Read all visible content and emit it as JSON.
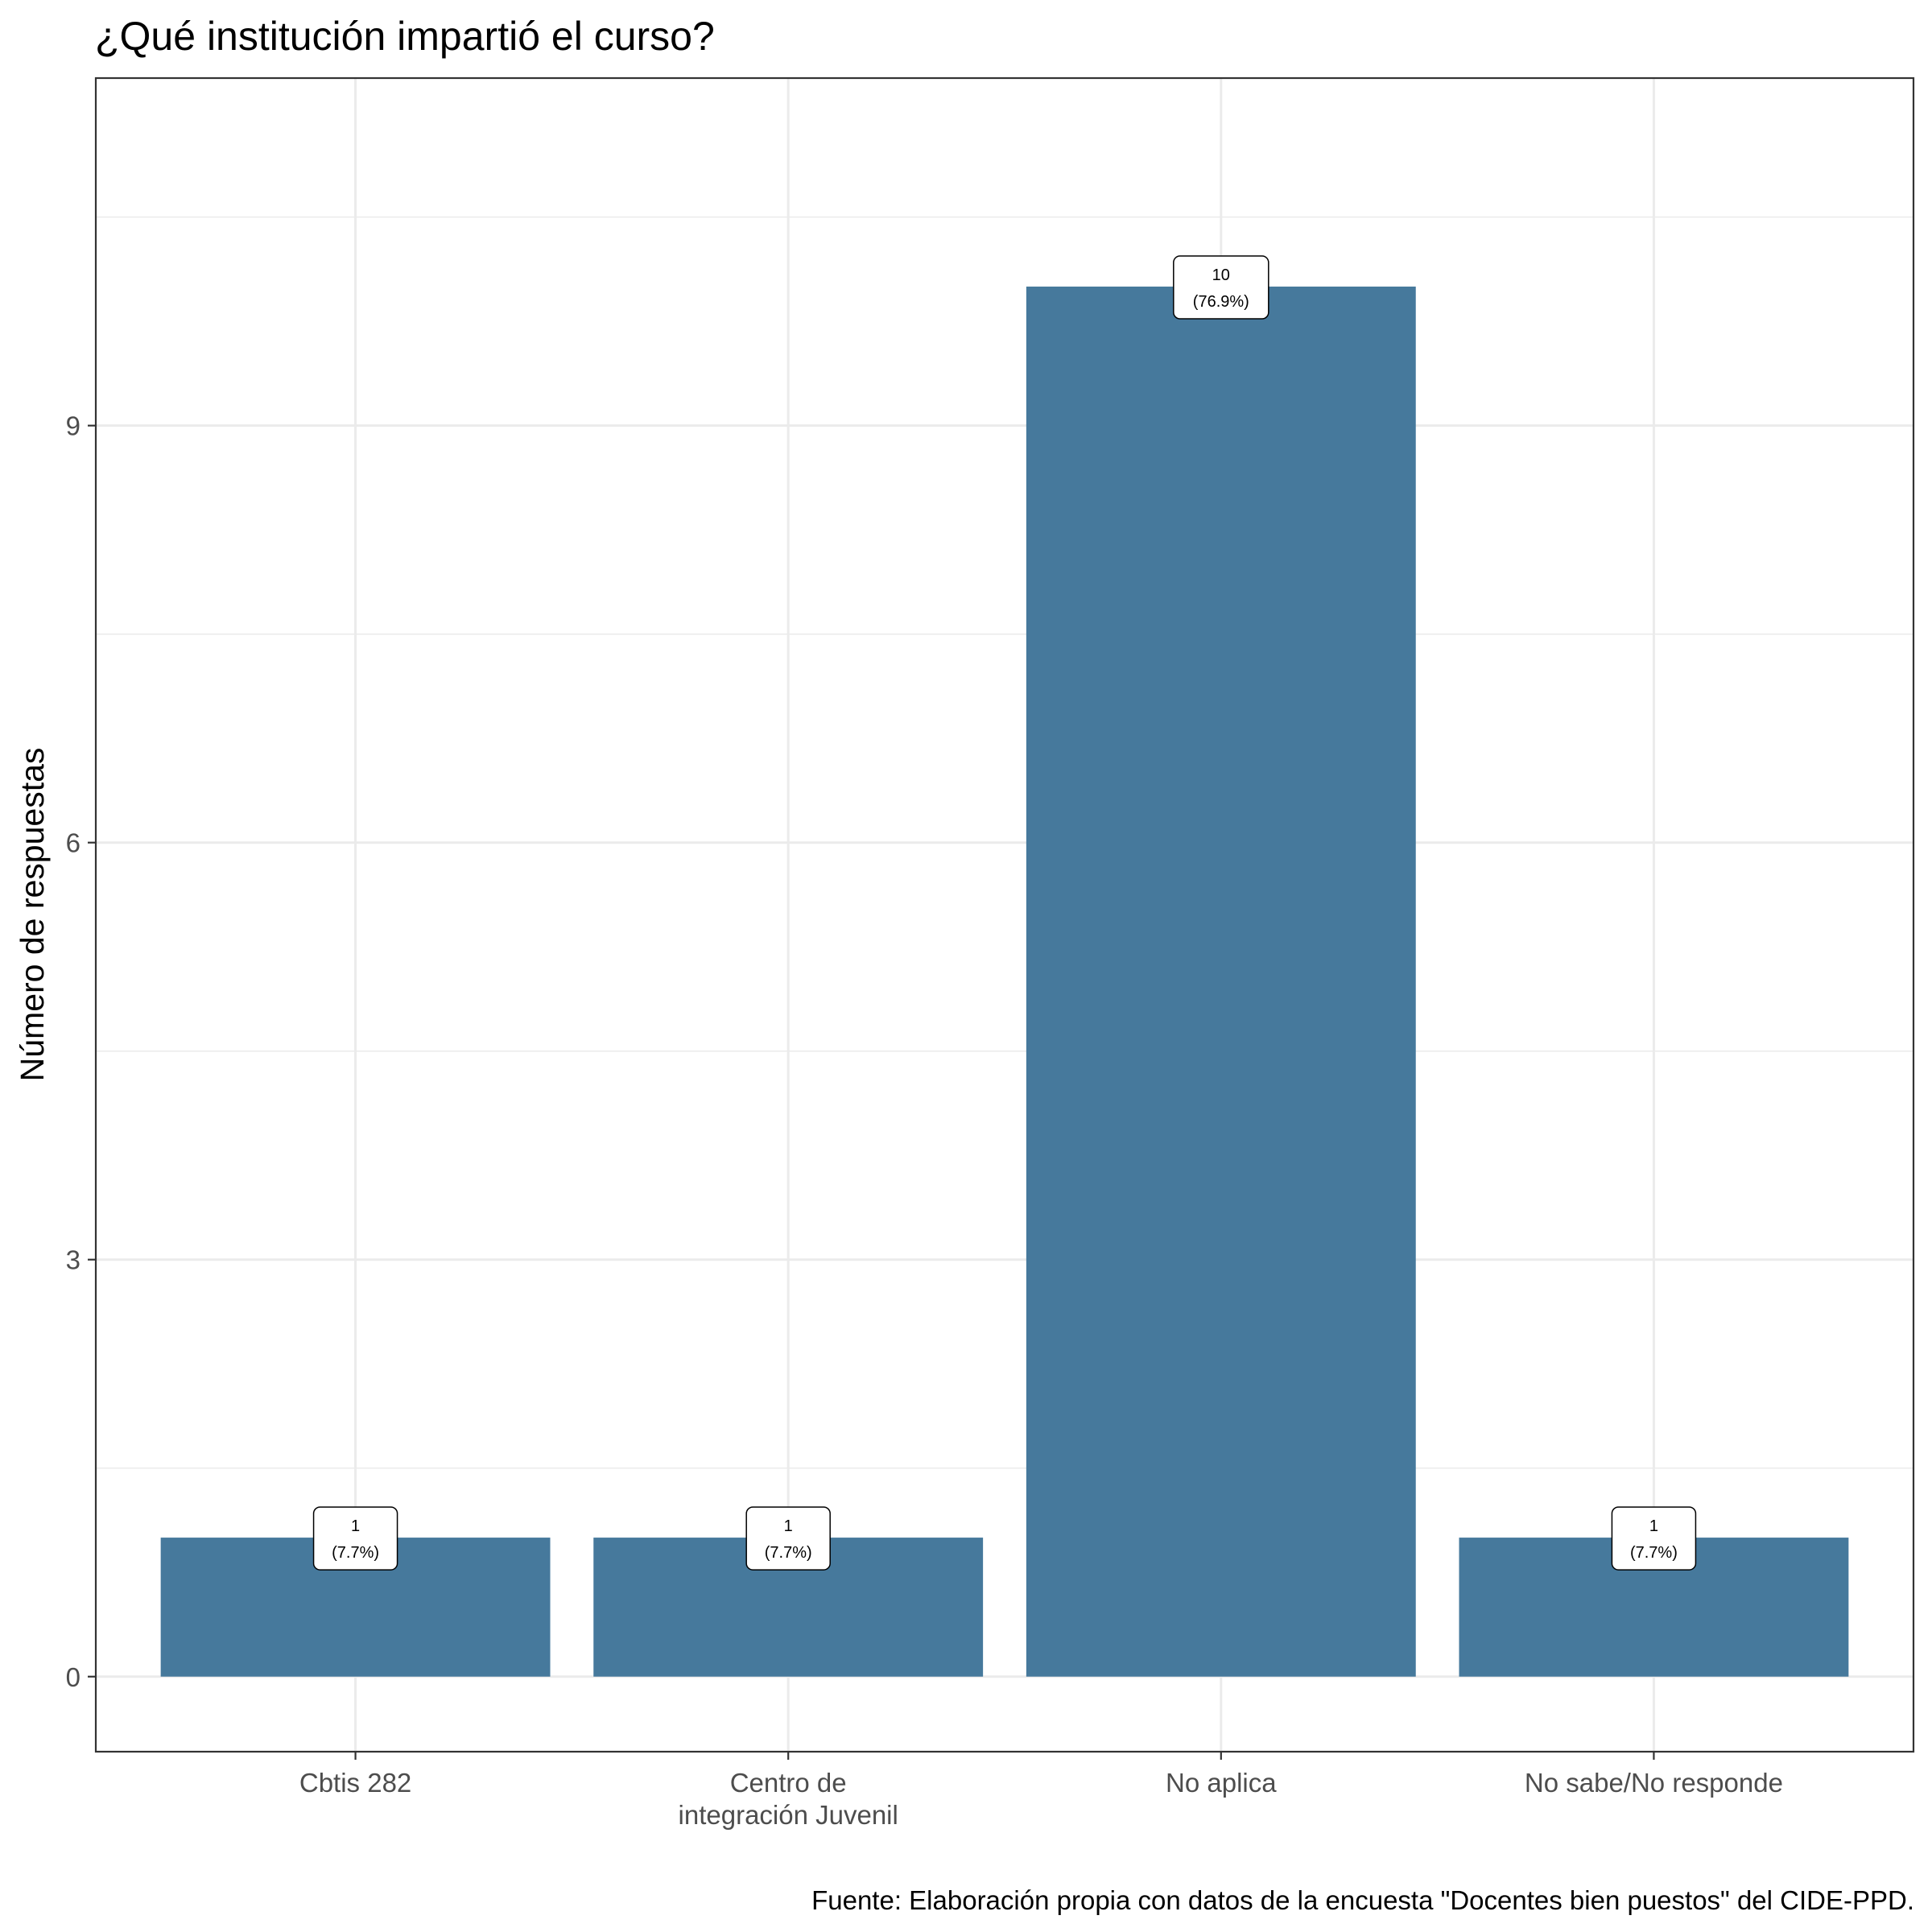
{
  "chart_data": {
    "type": "bar",
    "title": "¿Qué institución impartió el curso?",
    "xlabel": "",
    "ylabel": "Número de respuestas",
    "caption": "Fuente: Elaboración propia con datos de la encuesta \"Docentes bien puestos\" del CIDE-PPD.",
    "categories": [
      [
        "Cbtis 282"
      ],
      [
        "Centro de",
        "integración Juvenil"
      ],
      [
        "No aplica"
      ],
      [
        "No sabe/No responde"
      ]
    ],
    "values": [
      1,
      1,
      10,
      1
    ],
    "value_labels": [
      [
        "1",
        "(7.7%)"
      ],
      [
        "1",
        "(7.7%)"
      ],
      [
        "10",
        "(76.9%)"
      ],
      [
        "1",
        "(7.7%)"
      ]
    ],
    "yticks": [
      0,
      3,
      6,
      9
    ],
    "ylim": [
      -0.54,
      11.5
    ],
    "grid": true,
    "bar_color": "#46799C",
    "legend": "none"
  }
}
